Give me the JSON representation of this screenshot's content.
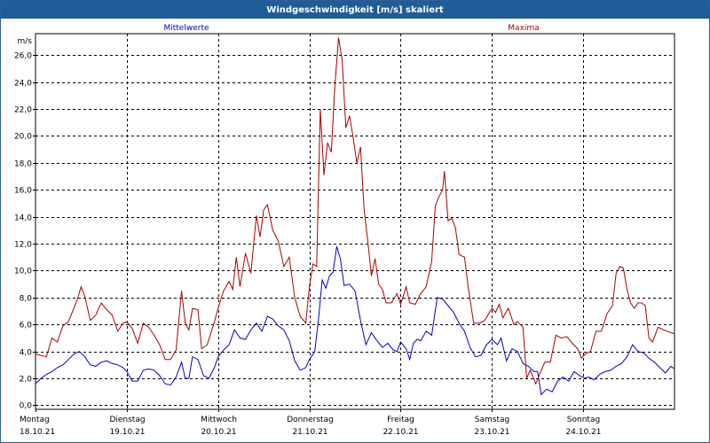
{
  "title": "Windgeschwindigkeit [m/s] skaliert",
  "chart_data": {
    "type": "line",
    "title": "Windgeschwindigkeit [m/s] skaliert",
    "ylabel": "m/s",
    "ylim": [
      -0.3,
      27.6
    ],
    "yticks": [
      "0,0",
      "2,0",
      "4,0",
      "6,0",
      "8,0",
      "10,0",
      "12,0",
      "14,0",
      "16,0",
      "18,0",
      "20,0",
      "22,0",
      "24,0",
      "26,0"
    ],
    "ytick_values": [
      0,
      2,
      4,
      6,
      8,
      10,
      12,
      14,
      16,
      18,
      20,
      22,
      24,
      26
    ],
    "xlim": [
      0,
      7
    ],
    "x_day_labels": [
      {
        "day": "Montag",
        "date": "18.10.21"
      },
      {
        "day": "Dienstag",
        "date": "19.10.21"
      },
      {
        "day": "Mittwoch",
        "date": "20.10.21"
      },
      {
        "day": "Donnerstag",
        "date": "21.10.21"
      },
      {
        "day": "Freitag",
        "date": "22.10.21"
      },
      {
        "day": "Samstag",
        "date": "23.10.21"
      },
      {
        "day": "Sonntag",
        "date": "24.10.21"
      }
    ],
    "grid": true,
    "series": [
      {
        "name": "Mittelwerte",
        "color": "#0000cc",
        "points": [
          [
            0.0,
            1.6
          ],
          [
            0.06,
            2.0
          ],
          [
            0.12,
            2.3
          ],
          [
            0.18,
            2.5
          ],
          [
            0.24,
            2.8
          ],
          [
            0.3,
            3.0
          ],
          [
            0.36,
            3.4
          ],
          [
            0.42,
            3.8
          ],
          [
            0.48,
            4.0
          ],
          [
            0.54,
            3.6
          ],
          [
            0.6,
            3.0
          ],
          [
            0.66,
            2.9
          ],
          [
            0.72,
            3.2
          ],
          [
            0.78,
            3.3
          ],
          [
            0.84,
            3.1
          ],
          [
            0.9,
            3.0
          ],
          [
            0.96,
            2.8
          ],
          [
            1.0,
            2.5
          ],
          [
            1.06,
            1.8
          ],
          [
            1.12,
            1.8
          ],
          [
            1.18,
            2.6
          ],
          [
            1.24,
            2.7
          ],
          [
            1.3,
            2.6
          ],
          [
            1.36,
            2.2
          ],
          [
            1.42,
            1.6
          ],
          [
            1.48,
            1.5
          ],
          [
            1.54,
            2.1
          ],
          [
            1.6,
            3.2
          ],
          [
            1.64,
            2.0
          ],
          [
            1.68,
            2.0
          ],
          [
            1.72,
            3.6
          ],
          [
            1.78,
            3.4
          ],
          [
            1.84,
            2.2
          ],
          [
            1.9,
            2.0
          ],
          [
            1.96,
            2.8
          ],
          [
            2.0,
            3.6
          ],
          [
            2.06,
            4.1
          ],
          [
            2.12,
            4.5
          ],
          [
            2.18,
            5.6
          ],
          [
            2.24,
            5.0
          ],
          [
            2.3,
            4.9
          ],
          [
            2.36,
            5.6
          ],
          [
            2.42,
            6.1
          ],
          [
            2.48,
            5.5
          ],
          [
            2.54,
            6.6
          ],
          [
            2.6,
            6.4
          ],
          [
            2.66,
            5.9
          ],
          [
            2.72,
            5.6
          ],
          [
            2.78,
            4.8
          ],
          [
            2.84,
            3.3
          ],
          [
            2.9,
            2.6
          ],
          [
            2.96,
            2.8
          ],
          [
            3.0,
            3.4
          ],
          [
            3.06,
            4.0
          ],
          [
            3.1,
            6.4
          ],
          [
            3.14,
            9.3
          ],
          [
            3.18,
            8.7
          ],
          [
            3.22,
            9.6
          ],
          [
            3.26,
            9.9
          ],
          [
            3.3,
            11.8
          ],
          [
            3.34,
            10.9
          ],
          [
            3.38,
            8.9
          ],
          [
            3.44,
            9.0
          ],
          [
            3.5,
            8.5
          ],
          [
            3.56,
            6.3
          ],
          [
            3.62,
            4.5
          ],
          [
            3.68,
            5.4
          ],
          [
            3.74,
            4.8
          ],
          [
            3.8,
            4.3
          ],
          [
            3.86,
            4.6
          ],
          [
            3.92,
            4.1
          ],
          [
            3.96,
            4.0
          ],
          [
            4.0,
            4.7
          ],
          [
            4.06,
            4.2
          ],
          [
            4.1,
            3.4
          ],
          [
            4.14,
            4.6
          ],
          [
            4.18,
            4.9
          ],
          [
            4.22,
            4.8
          ],
          [
            4.28,
            5.5
          ],
          [
            4.34,
            5.2
          ],
          [
            4.4,
            8.0
          ],
          [
            4.46,
            7.9
          ],
          [
            4.52,
            7.4
          ],
          [
            4.58,
            6.9
          ],
          [
            4.64,
            6.1
          ],
          [
            4.7,
            5.5
          ],
          [
            4.76,
            4.3
          ],
          [
            4.82,
            3.6
          ],
          [
            4.88,
            3.7
          ],
          [
            4.94,
            4.5
          ],
          [
            5.0,
            4.9
          ],
          [
            5.06,
            4.5
          ],
          [
            5.1,
            5.0
          ],
          [
            5.16,
            3.3
          ],
          [
            5.22,
            4.2
          ],
          [
            5.28,
            4.0
          ],
          [
            5.34,
            3.1
          ],
          [
            5.4,
            2.9
          ],
          [
            5.46,
            2.5
          ],
          [
            5.5,
            2.5
          ],
          [
            5.54,
            0.8
          ],
          [
            5.6,
            1.2
          ],
          [
            5.66,
            1.0
          ],
          [
            5.72,
            1.8
          ],
          [
            5.78,
            2.1
          ],
          [
            5.84,
            1.8
          ],
          [
            5.9,
            2.5
          ],
          [
            5.96,
            2.2
          ],
          [
            6.02,
            2.0
          ],
          [
            6.06,
            2.1
          ],
          [
            6.12,
            1.9
          ],
          [
            6.18,
            2.3
          ],
          [
            6.24,
            2.5
          ],
          [
            6.3,
            2.6
          ],
          [
            6.36,
            2.9
          ],
          [
            6.42,
            3.1
          ],
          [
            6.48,
            3.6
          ],
          [
            6.54,
            4.5
          ],
          [
            6.6,
            4.0
          ],
          [
            6.66,
            3.9
          ],
          [
            6.72,
            3.5
          ],
          [
            6.78,
            3.2
          ],
          [
            6.84,
            2.8
          ],
          [
            6.9,
            2.4
          ],
          [
            6.96,
            2.9
          ],
          [
            7.0,
            2.7
          ]
        ]
      },
      {
        "name": "Maxima",
        "color": "#aa0000",
        "points": [
          [
            0.0,
            3.8
          ],
          [
            0.06,
            3.7
          ],
          [
            0.12,
            3.6
          ],
          [
            0.18,
            5.0
          ],
          [
            0.24,
            4.7
          ],
          [
            0.3,
            5.9
          ],
          [
            0.36,
            6.2
          ],
          [
            0.42,
            7.2
          ],
          [
            0.46,
            7.9
          ],
          [
            0.5,
            8.8
          ],
          [
            0.54,
            8.1
          ],
          [
            0.6,
            6.3
          ],
          [
            0.66,
            6.7
          ],
          [
            0.72,
            7.6
          ],
          [
            0.78,
            7.1
          ],
          [
            0.84,
            6.7
          ],
          [
            0.9,
            5.5
          ],
          [
            0.96,
            6.1
          ],
          [
            1.0,
            6.2
          ],
          [
            1.06,
            5.7
          ],
          [
            1.12,
            4.6
          ],
          [
            1.18,
            6.1
          ],
          [
            1.24,
            5.8
          ],
          [
            1.3,
            5.2
          ],
          [
            1.36,
            4.5
          ],
          [
            1.42,
            3.4
          ],
          [
            1.48,
            3.4
          ],
          [
            1.54,
            4.1
          ],
          [
            1.6,
            8.5
          ],
          [
            1.64,
            6.1
          ],
          [
            1.68,
            5.6
          ],
          [
            1.72,
            7.2
          ],
          [
            1.78,
            7.1
          ],
          [
            1.82,
            4.2
          ],
          [
            1.88,
            4.5
          ],
          [
            1.96,
            6.2
          ],
          [
            2.0,
            7.2
          ],
          [
            2.06,
            8.5
          ],
          [
            2.12,
            9.2
          ],
          [
            2.16,
            8.6
          ],
          [
            2.2,
            11.0
          ],
          [
            2.24,
            8.8
          ],
          [
            2.3,
            11.3
          ],
          [
            2.36,
            9.8
          ],
          [
            2.42,
            14.1
          ],
          [
            2.46,
            12.5
          ],
          [
            2.5,
            14.5
          ],
          [
            2.54,
            14.9
          ],
          [
            2.6,
            13.0
          ],
          [
            2.66,
            12.2
          ],
          [
            2.72,
            10.3
          ],
          [
            2.78,
            11.0
          ],
          [
            2.84,
            8.0
          ],
          [
            2.9,
            6.6
          ],
          [
            2.96,
            6.1
          ],
          [
            3.0,
            8.8
          ],
          [
            3.04,
            10.5
          ],
          [
            3.08,
            10.3
          ],
          [
            3.12,
            22.0
          ],
          [
            3.16,
            17.1
          ],
          [
            3.2,
            19.5
          ],
          [
            3.24,
            18.8
          ],
          [
            3.28,
            23.8
          ],
          [
            3.32,
            27.3
          ],
          [
            3.36,
            25.6
          ],
          [
            3.4,
            20.6
          ],
          [
            3.44,
            21.5
          ],
          [
            3.48,
            19.9
          ],
          [
            3.52,
            18.0
          ],
          [
            3.56,
            19.2
          ],
          [
            3.6,
            14.5
          ],
          [
            3.64,
            12.2
          ],
          [
            3.68,
            9.6
          ],
          [
            3.72,
            10.9
          ],
          [
            3.76,
            9.0
          ],
          [
            3.8,
            8.6
          ],
          [
            3.84,
            7.6
          ],
          [
            3.9,
            7.6
          ],
          [
            3.96,
            8.3
          ],
          [
            4.0,
            7.5
          ],
          [
            4.06,
            8.8
          ],
          [
            4.1,
            7.6
          ],
          [
            4.16,
            7.5
          ],
          [
            4.22,
            8.3
          ],
          [
            4.28,
            8.8
          ],
          [
            4.34,
            10.7
          ],
          [
            4.38,
            14.8
          ],
          [
            4.42,
            15.5
          ],
          [
            4.46,
            16.0
          ],
          [
            4.48,
            17.4
          ],
          [
            4.52,
            13.7
          ],
          [
            4.56,
            13.9
          ],
          [
            4.6,
            13.2
          ],
          [
            4.64,
            11.2
          ],
          [
            4.7,
            11.0
          ],
          [
            4.74,
            8.8
          ],
          [
            4.8,
            6.1
          ],
          [
            4.86,
            6.1
          ],
          [
            4.92,
            6.3
          ],
          [
            5.0,
            7.2
          ],
          [
            5.04,
            6.9
          ],
          [
            5.08,
            7.5
          ],
          [
            5.12,
            6.5
          ],
          [
            5.18,
            7.2
          ],
          [
            5.24,
            6.0
          ],
          [
            5.28,
            6.2
          ],
          [
            5.34,
            5.8
          ],
          [
            5.38,
            2.0
          ],
          [
            5.42,
            2.6
          ],
          [
            5.48,
            1.6
          ],
          [
            5.54,
            2.6
          ],
          [
            5.58,
            3.2
          ],
          [
            5.64,
            3.2
          ],
          [
            5.7,
            5.2
          ],
          [
            5.76,
            5.0
          ],
          [
            5.82,
            5.1
          ],
          [
            5.88,
            4.6
          ],
          [
            5.94,
            4.2
          ],
          [
            5.98,
            3.5
          ],
          [
            6.02,
            3.8
          ],
          [
            6.08,
            4.0
          ],
          [
            6.14,
            5.5
          ],
          [
            6.2,
            5.5
          ],
          [
            6.26,
            6.8
          ],
          [
            6.32,
            7.4
          ],
          [
            6.36,
            9.8
          ],
          [
            6.4,
            10.3
          ],
          [
            6.44,
            10.2
          ],
          [
            6.48,
            8.6
          ],
          [
            6.52,
            7.6
          ],
          [
            6.56,
            7.2
          ],
          [
            6.6,
            7.6
          ],
          [
            6.64,
            7.6
          ],
          [
            6.68,
            7.4
          ],
          [
            6.72,
            5.0
          ],
          [
            6.76,
            4.7
          ],
          [
            6.82,
            5.8
          ],
          [
            6.88,
            5.6
          ],
          [
            7.0,
            5.3
          ]
        ]
      }
    ]
  }
}
